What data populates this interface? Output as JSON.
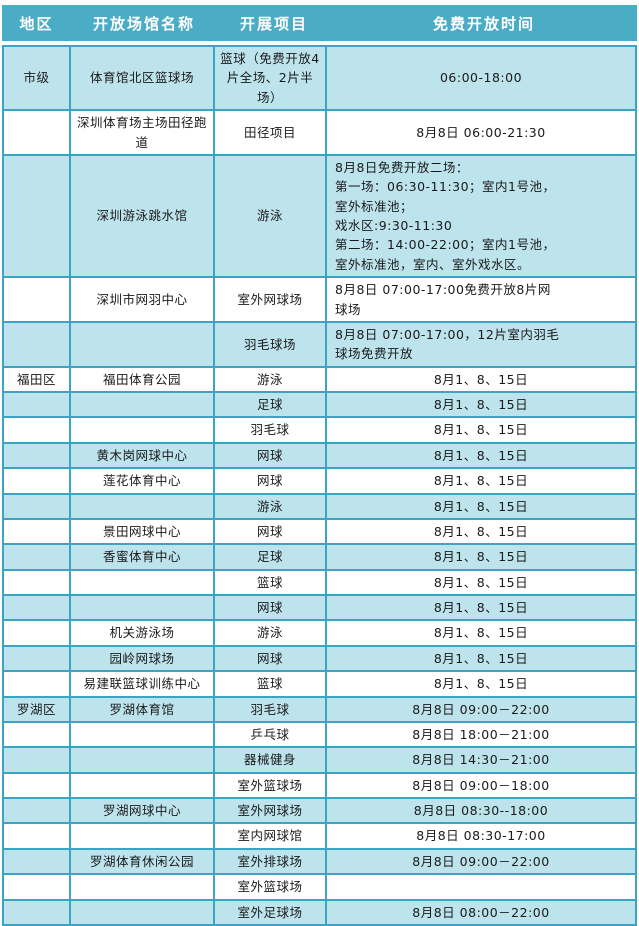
{
  "colors": {
    "header_bg": "#4bacc6",
    "header_text": "#ffffff",
    "row_shade": "#bde3ed",
    "row_plain": "#ffffff",
    "border": "#3ba4c2"
  },
  "table": {
    "columns": [
      "地区",
      "开放场馆名称",
      "开展项目",
      "免费开放时间"
    ],
    "rows": [
      {
        "district": "市级",
        "venue": "体育馆北区篮球场",
        "project": "篮球（免费开放4片全场、2片半场）",
        "time": "06:00-18:00"
      },
      {
        "district": "",
        "venue": "深圳体育场主场田径跑道",
        "project": "田径项目",
        "time": "8月8日 06:00-21:30"
      },
      {
        "district": "",
        "venue": "深圳游泳跳水馆",
        "project": "游泳",
        "time": "8月8日免费开放二场：\n第一场：06:30-11:30；室内1号池，\n室外标准池；\n戏水区:9:30-11:30\n第二场：14:00-22:00；室内1号池，\n室外标准池，室内、室外戏水区。"
      },
      {
        "district": "",
        "venue": "深圳市网羽中心",
        "project": "室外网球场",
        "time": "8月8日 07:00-17:00免费开放8片网\n球场"
      },
      {
        "district": "",
        "venue": "",
        "project": "羽毛球场",
        "time": "8月8日 07:00-17:00，12片室内羽毛\n球场免费开放"
      },
      {
        "district": "福田区",
        "venue": "福田体育公园",
        "project": "游泳",
        "time": "8月1、8、15日"
      },
      {
        "district": "",
        "venue": "",
        "project": "足球",
        "time": "8月1、8、15日"
      },
      {
        "district": "",
        "venue": "",
        "project": "羽毛球",
        "time": "8月1、8、15日"
      },
      {
        "district": "",
        "venue": "黄木岗网球中心",
        "project": "网球",
        "time": "8月1、8、15日"
      },
      {
        "district": "",
        "venue": "莲花体育中心",
        "project": "网球",
        "time": "8月1、8、15日"
      },
      {
        "district": "",
        "venue": "",
        "project": "游泳",
        "time": "8月1、8、15日"
      },
      {
        "district": "",
        "venue": "景田网球中心",
        "project": "网球",
        "time": "8月1、8、15日"
      },
      {
        "district": "",
        "venue": "香蜜体育中心",
        "project": "足球",
        "time": "8月1、8、15日"
      },
      {
        "district": "",
        "venue": "",
        "project": "篮球",
        "time": "8月1、8、15日"
      },
      {
        "district": "",
        "venue": "",
        "project": "网球",
        "time": "8月1、8、15日"
      },
      {
        "district": "",
        "venue": "机关游泳场",
        "project": "游泳",
        "time": "8月1、8、15日"
      },
      {
        "district": "",
        "venue": "园岭网球场",
        "project": "网球",
        "time": "8月1、8、15日"
      },
      {
        "district": "",
        "venue": "易建联篮球训练中心",
        "project": "篮球",
        "time": "8月1、8、15日"
      },
      {
        "district": "罗湖区",
        "venue": "罗湖体育馆",
        "project": "羽毛球",
        "time": "8月8日 09:00－22:00"
      },
      {
        "district": "",
        "venue": "",
        "project": "乒乓球",
        "time": "8月8日 18:00－21:00"
      },
      {
        "district": "",
        "venue": "",
        "project": "器械健身",
        "time": "8月8日 14:30－21:00"
      },
      {
        "district": "",
        "venue": "",
        "project": "室外篮球场",
        "time": "8月8日 09:00－18:00"
      },
      {
        "district": "",
        "venue": "罗湖网球中心",
        "project": "室外网球场",
        "time": "8月8日 08:30--18:00"
      },
      {
        "district": "",
        "venue": "",
        "project": "室内网球馆",
        "time": "8月8日 08:30-17:00"
      },
      {
        "district": "",
        "venue": "罗湖体育休闲公园",
        "project": "室外排球场",
        "time": "8月8日 09:00－22:00"
      },
      {
        "district": "",
        "venue": "",
        "project": "室外篮球场",
        "time": ""
      },
      {
        "district": "",
        "venue": "",
        "project": "室外足球场",
        "time": "8月8日 08:00－22:00"
      }
    ]
  }
}
